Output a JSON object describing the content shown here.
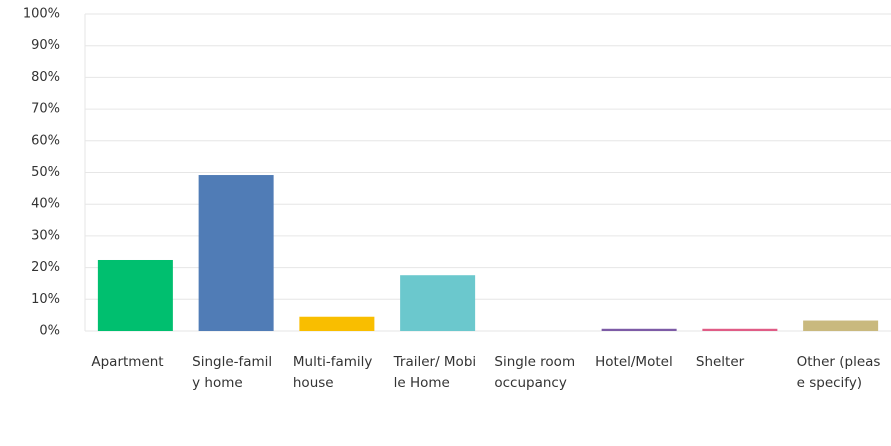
{
  "chart_data": {
    "type": "bar",
    "categories": [
      "Apartment",
      "Single-family home",
      "Multi-family house",
      "Trailer/ Mobile Home",
      "Single room occupancy",
      "Hotel/Motel",
      "Shelter",
      "Other (please specify)"
    ],
    "values": [
      22.4,
      49.2,
      4.5,
      17.6,
      0,
      0.7,
      0.7,
      3.3
    ],
    "colors": [
      "#00bf6f",
      "#507cb6",
      "#f9be00",
      "#6bc8cd",
      "#ff8b4f",
      "#7d5ba6",
      "#e05c86",
      "#c9b97e"
    ],
    "ylim": [
      0,
      100
    ],
    "yticks": [
      {
        "value": 0,
        "label": "0%"
      },
      {
        "value": 10,
        "label": "10%"
      },
      {
        "value": 20,
        "label": "20%"
      },
      {
        "value": 30,
        "label": "30%"
      },
      {
        "value": 40,
        "label": "40%"
      },
      {
        "value": 50,
        "label": "50%"
      },
      {
        "value": 60,
        "label": "60%"
      },
      {
        "value": 70,
        "label": "70%"
      },
      {
        "value": 80,
        "label": "80%"
      },
      {
        "value": 90,
        "label": "90%"
      },
      {
        "value": 100,
        "label": "100%"
      }
    ],
    "grid": true
  }
}
